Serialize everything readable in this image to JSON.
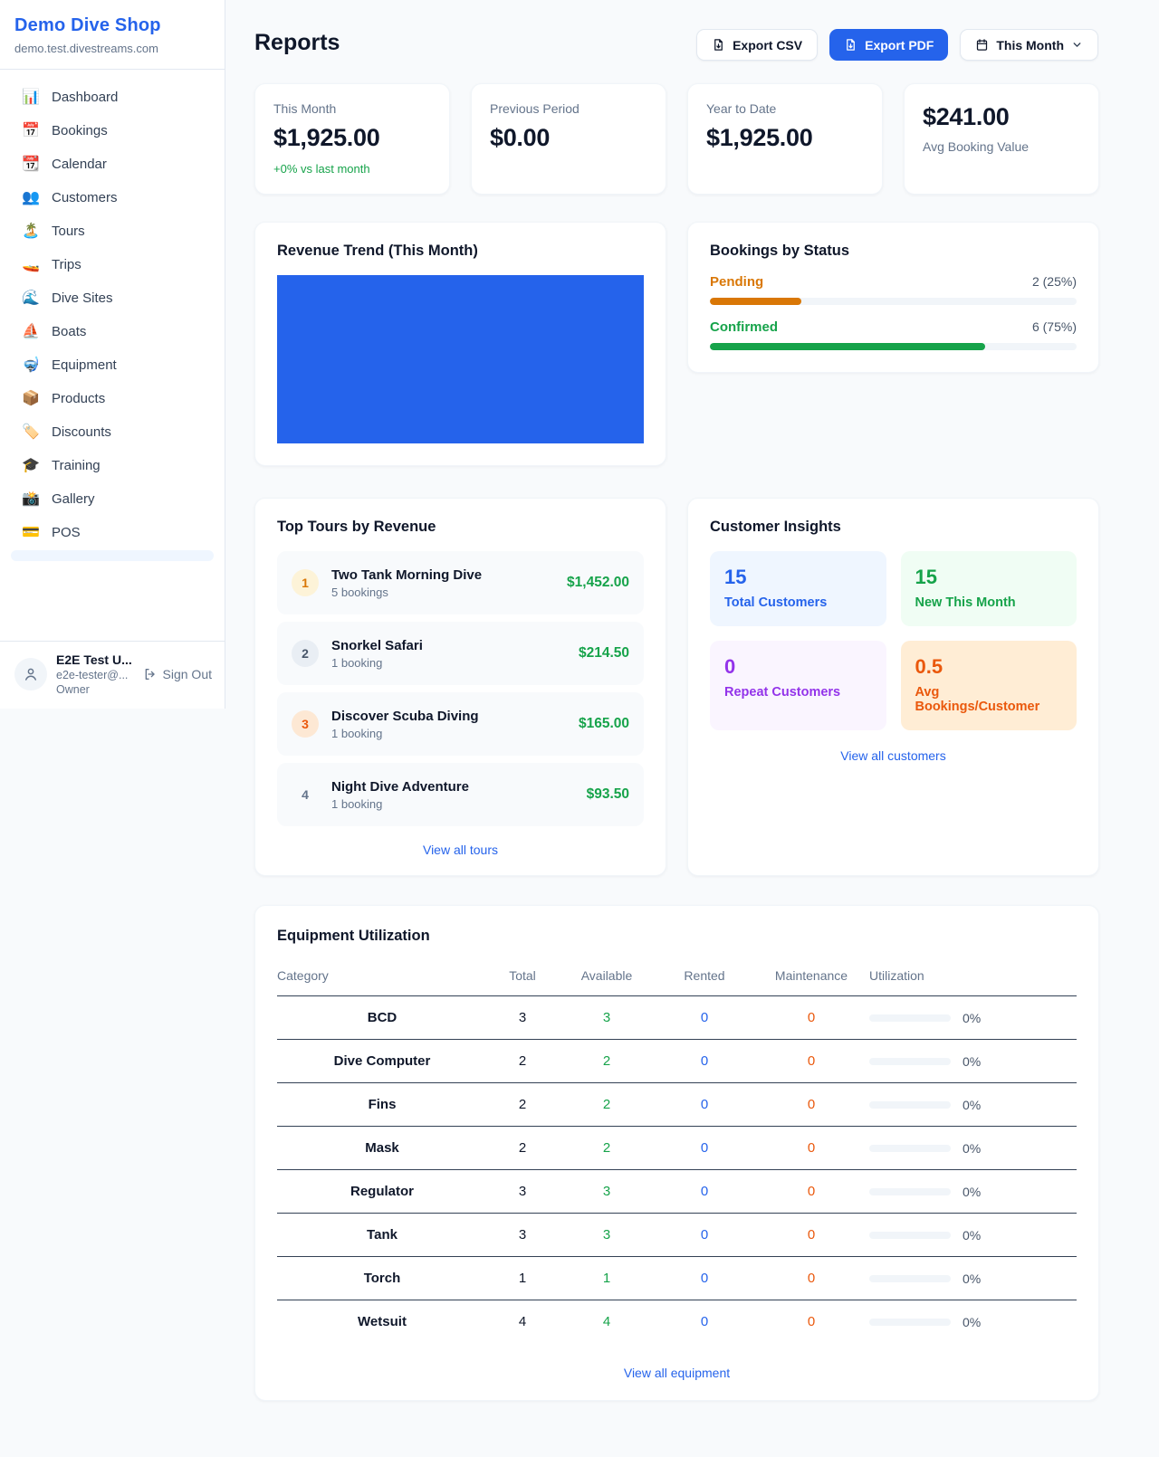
{
  "brand": {
    "name": "Demo Dive Shop",
    "domain": "demo.test.divestreams.com"
  },
  "colors": {
    "accent": "#2563eb",
    "green": "#16a34a",
    "amber": "#d97706",
    "orange": "#ea580c",
    "purple": "#9333ea"
  },
  "sidebar": {
    "items": [
      {
        "icon": "📊",
        "label": "Dashboard"
      },
      {
        "icon": "📅",
        "label": "Bookings"
      },
      {
        "icon": "📆",
        "label": "Calendar"
      },
      {
        "icon": "👥",
        "label": "Customers"
      },
      {
        "icon": "🏝️",
        "label": "Tours"
      },
      {
        "icon": "🚤",
        "label": "Trips"
      },
      {
        "icon": "🌊",
        "label": "Dive Sites"
      },
      {
        "icon": "⛵",
        "label": "Boats"
      },
      {
        "icon": "🤿",
        "label": "Equipment"
      },
      {
        "icon": "📦",
        "label": "Products"
      },
      {
        "icon": "🏷️",
        "label": "Discounts"
      },
      {
        "icon": "🎓",
        "label": "Training"
      },
      {
        "icon": "📸",
        "label": "Gallery"
      },
      {
        "icon": "💳",
        "label": "POS"
      }
    ],
    "user": {
      "name": "E2E Test U...",
      "email": "e2e-tester@...",
      "role": "Owner",
      "signout_label": "Sign Out"
    }
  },
  "header": {
    "title": "Reports",
    "export_csv_label": "Export CSV",
    "export_pdf_label": "Export PDF",
    "period_label": "This Month"
  },
  "stats": {
    "this_month": {
      "label": "This Month",
      "value": "$1,925.00",
      "delta": "+0% vs last month"
    },
    "previous": {
      "label": "Previous Period",
      "value": "$0.00"
    },
    "ytd": {
      "label": "Year to Date",
      "value": "$1,925.00"
    },
    "avg": {
      "value": "$241.00",
      "label": "Avg Booking Value"
    }
  },
  "revenue_trend": {
    "title": "Revenue Trend (This Month)",
    "bar_color": "#2563eb",
    "bar_fill_pct": 100
  },
  "bookings_by_status": {
    "title": "Bookings by Status",
    "rows": [
      {
        "label": "Pending",
        "count_label": "2 (25%)",
        "pct": 25
      },
      {
        "label": "Confirmed",
        "count_label": "6 (75%)",
        "pct": 75
      }
    ]
  },
  "top_tours": {
    "title": "Top Tours by Revenue",
    "rows": [
      {
        "rank": "1",
        "name": "Two Tank Morning Dive",
        "bookings": "5 bookings",
        "revenue": "$1,452.00"
      },
      {
        "rank": "2",
        "name": "Snorkel Safari",
        "bookings": "1 booking",
        "revenue": "$214.50"
      },
      {
        "rank": "3",
        "name": "Discover Scuba Diving",
        "bookings": "1 booking",
        "revenue": "$165.00"
      },
      {
        "rank": "4",
        "name": "Night Dive Adventure",
        "bookings": "1 booking",
        "revenue": "$93.50"
      }
    ],
    "link_label": "View all tours"
  },
  "customer_insights": {
    "title": "Customer Insights",
    "tiles": [
      {
        "value": "15",
        "label": "Total Customers"
      },
      {
        "value": "15",
        "label": "New This Month"
      },
      {
        "value": "0",
        "label": "Repeat Customers"
      },
      {
        "value": "0.5",
        "label": "Avg Bookings/Customer"
      }
    ],
    "link_label": "View all customers"
  },
  "equipment": {
    "title": "Equipment Utilization",
    "columns": [
      "Category",
      "Total",
      "Available",
      "Rented",
      "Maintenance",
      "Utilization"
    ],
    "rows": [
      {
        "category": "BCD",
        "total": "3",
        "available": "3",
        "rented": "0",
        "maintenance": "0",
        "utilization_label": "0%",
        "utilization_pct": 0
      },
      {
        "category": "Dive Computer",
        "total": "2",
        "available": "2",
        "rented": "0",
        "maintenance": "0",
        "utilization_label": "0%",
        "utilization_pct": 0
      },
      {
        "category": "Fins",
        "total": "2",
        "available": "2",
        "rented": "0",
        "maintenance": "0",
        "utilization_label": "0%",
        "utilization_pct": 0
      },
      {
        "category": "Mask",
        "total": "2",
        "available": "2",
        "rented": "0",
        "maintenance": "0",
        "utilization_label": "0%",
        "utilization_pct": 0
      },
      {
        "category": "Regulator",
        "total": "3",
        "available": "3",
        "rented": "0",
        "maintenance": "0",
        "utilization_label": "0%",
        "utilization_pct": 0
      },
      {
        "category": "Tank",
        "total": "3",
        "available": "3",
        "rented": "0",
        "maintenance": "0",
        "utilization_label": "0%",
        "utilization_pct": 0
      },
      {
        "category": "Torch",
        "total": "1",
        "available": "1",
        "rented": "0",
        "maintenance": "0",
        "utilization_label": "0%",
        "utilization_pct": 0
      },
      {
        "category": "Wetsuit",
        "total": "4",
        "available": "4",
        "rented": "0",
        "maintenance": "0",
        "utilization_label": "0%",
        "utilization_pct": 0
      }
    ],
    "link_label": "View all equipment"
  }
}
